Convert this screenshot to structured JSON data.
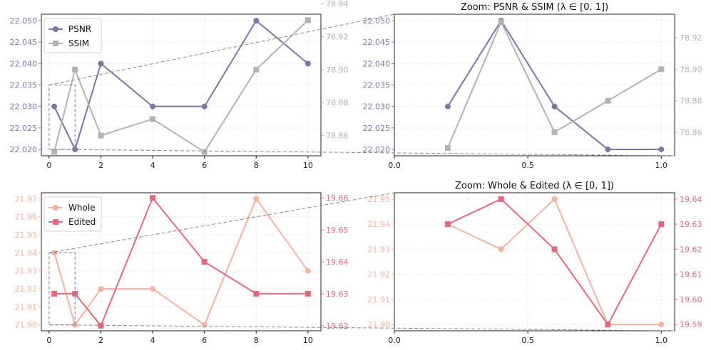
{
  "chart_data": [
    {
      "type": "line",
      "title": "",
      "x": [
        0.2,
        1,
        2,
        4,
        6,
        8,
        10
      ],
      "xlim": [
        -0.3,
        10.5
      ],
      "xticks": [
        0,
        2,
        4,
        6,
        8,
        10
      ],
      "ylim_left": [
        22.0185,
        22.0515
      ],
      "yticks_left": [
        "22.020",
        "22.025",
        "22.030",
        "22.035",
        "22.040",
        "22.045",
        "22.050"
      ],
      "ylim_right": [
        78.8477,
        78.9336
      ],
      "yticks_right": [
        "78.86",
        "78.88",
        "78.90",
        "78.92",
        "78.94"
      ],
      "series": [
        {
          "name": "PSNR",
          "axis": "left",
          "marker": "circle",
          "color": "#7b78a6",
          "values": [
            22.03,
            22.02,
            22.04,
            22.03,
            22.03,
            22.05,
            22.04
          ]
        },
        {
          "name": "SSIM",
          "axis": "right",
          "marker": "square",
          "color": "#b3b3b3",
          "values": [
            78.85,
            78.9,
            78.86,
            78.87,
            78.85,
            78.9,
            78.93
          ]
        }
      ],
      "legend": "top-left",
      "zoom_box": {
        "x": [
          0,
          1
        ],
        "y": [
          22.02,
          22.035
        ]
      }
    },
    {
      "type": "line",
      "title": "Zoom: PSNR & SSIM (λ ∈ [0, 1])",
      "x": [
        0.2,
        0.4,
        0.6,
        0.8,
        1.0
      ],
      "xlim": [
        0,
        1.05
      ],
      "xticks": [
        "0.0",
        "0.5",
        "1.0"
      ],
      "ylim_left": [
        22.0185,
        22.0515
      ],
      "yticks_left": [
        "22.020",
        "22.025",
        "22.030",
        "22.035",
        "22.040",
        "22.045",
        "22.050"
      ],
      "ylim_right": [
        78.845,
        78.935
      ],
      "yticks_right": [
        "78.86",
        "78.88",
        "78.90",
        "78.92"
      ],
      "series": [
        {
          "name": "PSNR",
          "axis": "left",
          "marker": "circle",
          "color": "#7b78a6",
          "values": [
            22.03,
            22.05,
            22.03,
            22.02,
            22.02
          ]
        },
        {
          "name": "SSIM",
          "axis": "right",
          "marker": "square",
          "color": "#b3b3b3",
          "values": [
            78.85,
            78.93,
            78.86,
            78.88,
            78.9
          ]
        }
      ]
    },
    {
      "type": "line",
      "title": "",
      "x": [
        0.2,
        1,
        2,
        4,
        6,
        8,
        10
      ],
      "xlim": [
        -0.3,
        10.5
      ],
      "xticks": [
        0,
        2,
        4,
        6,
        8,
        10
      ],
      "ylim_left": [
        21.8967,
        21.9733
      ],
      "yticks_left": [
        "21.90",
        "21.91",
        "21.92",
        "21.93",
        "21.94",
        "21.95",
        "21.96",
        "21.97"
      ],
      "ylim_right": [
        19.6184,
        19.6616
      ],
      "yticks_right": [
        "19.62",
        "19.63",
        "19.64",
        "19.65",
        "19.66"
      ],
      "series": [
        {
          "name": "Whole",
          "axis": "left",
          "marker": "circle",
          "color": "#f4b2a4",
          "values": [
            21.94,
            21.9,
            21.92,
            21.92,
            21.9,
            21.97,
            21.93
          ]
        },
        {
          "name": "Edited",
          "axis": "right",
          "marker": "square",
          "color": "#e16a80",
          "values": [
            19.63,
            19.63,
            19.62,
            19.66,
            19.64,
            19.63,
            19.63
          ]
        }
      ],
      "legend": "top-left",
      "zoom_box": {
        "x": [
          0,
          1
        ],
        "y": [
          21.9,
          21.94
        ]
      }
    },
    {
      "type": "line",
      "title": "Zoom: Whole & Edited (λ ∈ [0, 1])",
      "x": [
        0.2,
        0.4,
        0.6,
        0.8,
        1.0
      ],
      "xlim": [
        0,
        1.05
      ],
      "xticks": [
        "0.0",
        "0.5",
        "1.0"
      ],
      "ylim_left": [
        21.8975,
        21.9525
      ],
      "yticks_left": [
        "21.90",
        "21.91",
        "21.92",
        "21.93",
        "21.94",
        "21.95"
      ],
      "ylim_right": [
        19.5875,
        19.6425
      ],
      "yticks_right": [
        "19.59",
        "19.60",
        "19.61",
        "19.62",
        "19.63",
        "19.64"
      ],
      "series": [
        {
          "name": "Whole",
          "axis": "left",
          "marker": "circle",
          "color": "#f4b2a4",
          "values": [
            21.94,
            21.93,
            21.95,
            21.9,
            21.9
          ]
        },
        {
          "name": "Edited",
          "axis": "right",
          "marker": "square",
          "color": "#e16a80",
          "values": [
            19.63,
            19.64,
            19.62,
            19.59,
            19.63
          ]
        }
      ]
    }
  ]
}
